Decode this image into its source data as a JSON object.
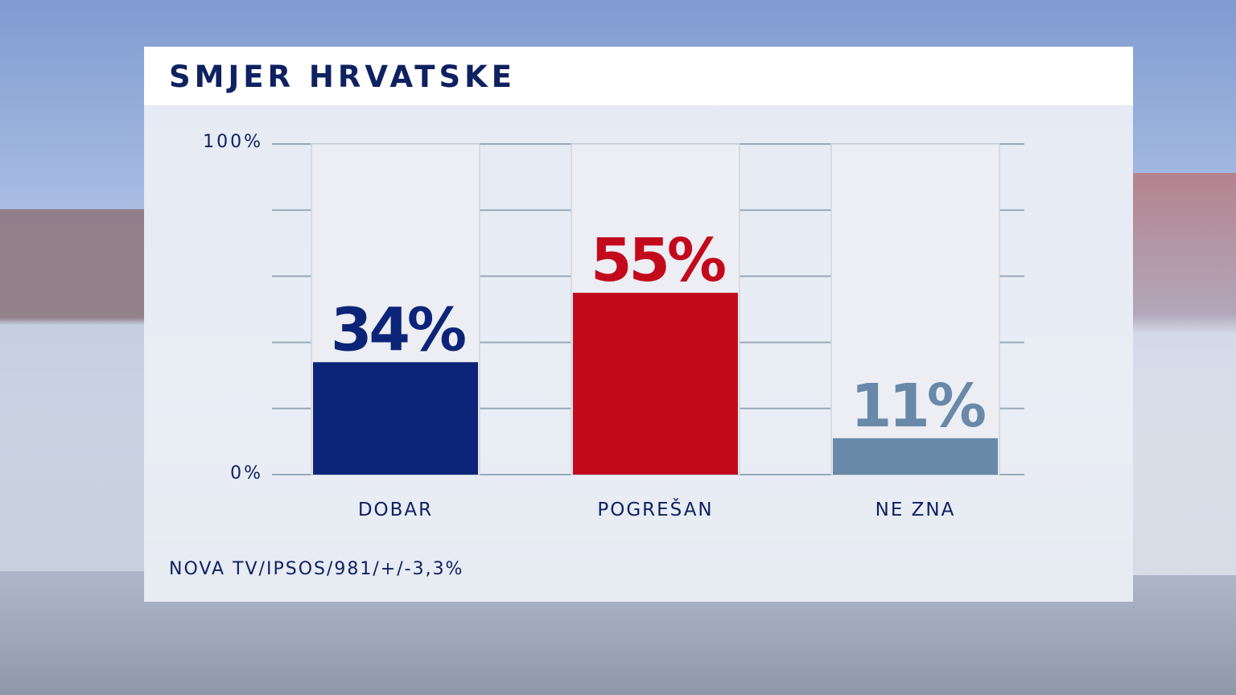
{
  "title": "SMJER HRVATSKE",
  "source": "NOVA TV/IPSOS/981/+/-3,3%",
  "chart_data": {
    "type": "bar",
    "title": "SMJER HRVATSKE",
    "categories": [
      "DOBAR",
      "POGREŠAN",
      "NE ZNA"
    ],
    "values": [
      34,
      55,
      11
    ],
    "value_labels": [
      "34%",
      "55%",
      "11%"
    ],
    "colors": [
      "#0c2478",
      "#c30a1c",
      "#6889a8"
    ],
    "ylim": [
      0,
      100
    ],
    "y_tick_labels": [
      "100%",
      "0%"
    ],
    "grid": true,
    "xlabel": "",
    "ylabel": ""
  }
}
